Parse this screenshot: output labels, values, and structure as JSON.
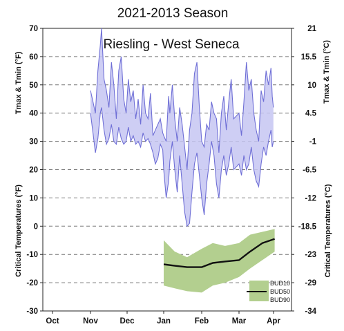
{
  "chart_data": {
    "type": "area",
    "title": "2021-2013 Season",
    "subtitle": "Riesling - West Seneca",
    "x_months": [
      "Oct",
      "Nov",
      "Dec",
      "Jan",
      "Feb",
      "Mar",
      "Apr"
    ],
    "yleft": {
      "range": [
        -30,
        70
      ],
      "ticks": [
        "70",
        "60",
        "50",
        "40",
        "30",
        "20",
        "10",
        "0",
        "-10",
        "-20",
        "-30"
      ],
      "label_top": "Tmax & Tmin (°F)",
      "label_bottom": "Critical Temperatures (°F)"
    },
    "yright": {
      "ticks": [
        "21",
        "15.5",
        "10",
        "4.5",
        "-1",
        "-6.5",
        "-12",
        "-18.5",
        "-23",
        "-29",
        "-34"
      ],
      "label_top": "Tmax & Tmin (°C)",
      "label_bottom": "Critical Temperatures (°C)"
    },
    "gridlines": [
      60,
      50,
      40,
      30,
      20,
      10,
      0,
      -10,
      -20
    ],
    "temperature_series": {
      "name": "Tmax & Tmin",
      "color": "#6f6fd6",
      "fill": "#c6c6f2",
      "days": [
        {
          "date": "Nov 1",
          "tmin": 40,
          "tmax": 48
        },
        {
          "date": "Nov 3",
          "tmin": 33,
          "tmax": 44
        },
        {
          "date": "Nov 5",
          "tmin": 26,
          "tmax": 40
        },
        {
          "date": "Nov 7",
          "tmin": 31,
          "tmax": 55
        },
        {
          "date": "Nov 9",
          "tmin": 40,
          "tmax": 64
        },
        {
          "date": "Nov 10",
          "tmin": 42,
          "tmax": 70
        },
        {
          "date": "Nov 12",
          "tmin": 34,
          "tmax": 52
        },
        {
          "date": "Nov 14",
          "tmin": 29,
          "tmax": 48
        },
        {
          "date": "Nov 16",
          "tmin": 31,
          "tmax": 42
        },
        {
          "date": "Nov 18",
          "tmin": 36,
          "tmax": 58
        },
        {
          "date": "Nov 20",
          "tmin": 30,
          "tmax": 50
        },
        {
          "date": "Nov 22",
          "tmin": 29,
          "tmax": 38
        },
        {
          "date": "Nov 24",
          "tmin": 35,
          "tmax": 55
        },
        {
          "date": "Nov 26",
          "tmin": 31,
          "tmax": 60
        },
        {
          "date": "Nov 28",
          "tmin": 29,
          "tmax": 45
        },
        {
          "date": "Nov 30",
          "tmin": 30,
          "tmax": 40
        },
        {
          "date": "Dec 2",
          "tmin": 35,
          "tmax": 52
        },
        {
          "date": "Dec 4",
          "tmin": 30,
          "tmax": 44
        },
        {
          "date": "Dec 6",
          "tmin": 32,
          "tmax": 48
        },
        {
          "date": "Dec 8",
          "tmin": 29,
          "tmax": 38
        },
        {
          "date": "Dec 10",
          "tmin": 30,
          "tmax": 45
        },
        {
          "date": "Dec 12",
          "tmin": 28,
          "tmax": 36
        },
        {
          "date": "Dec 14",
          "tmin": 33,
          "tmax": 50
        },
        {
          "date": "Dec 16",
          "tmin": 30,
          "tmax": 40
        },
        {
          "date": "Dec 18",
          "tmin": 31,
          "tmax": 38
        },
        {
          "date": "Dec 20",
          "tmin": 29,
          "tmax": 47
        },
        {
          "date": "Dec 22",
          "tmin": 26,
          "tmax": 32
        },
        {
          "date": "Dec 24",
          "tmin": 22,
          "tmax": 34
        },
        {
          "date": "Dec 26",
          "tmin": 24,
          "tmax": 36
        },
        {
          "date": "Dec 28",
          "tmin": 29,
          "tmax": 38
        },
        {
          "date": "Dec 30",
          "tmin": 27,
          "tmax": 33
        },
        {
          "date": "Jan 1",
          "tmin": 20,
          "tmax": 32
        },
        {
          "date": "Jan 3",
          "tmin": 10,
          "tmax": 30
        },
        {
          "date": "Jan 5",
          "tmin": 16,
          "tmax": 46
        },
        {
          "date": "Jan 6",
          "tmin": 23,
          "tmax": 40
        },
        {
          "date": "Jan 8",
          "tmin": 30,
          "tmax": 50
        },
        {
          "date": "Jan 10",
          "tmin": 20,
          "tmax": 38
        },
        {
          "date": "Jan 12",
          "tmin": 12,
          "tmax": 30
        },
        {
          "date": "Jan 14",
          "tmin": 25,
          "tmax": 42
        },
        {
          "date": "Jan 16",
          "tmin": 15,
          "tmax": 36
        },
        {
          "date": "Jan 18",
          "tmin": 5,
          "tmax": 28
        },
        {
          "date": "Jan 20",
          "tmin": 0,
          "tmax": 20
        },
        {
          "date": "Jan 22",
          "tmin": 1,
          "tmax": 34
        },
        {
          "date": "Jan 24",
          "tmin": 12,
          "tmax": 40
        },
        {
          "date": "Jan 26",
          "tmin": 22,
          "tmax": 54
        },
        {
          "date": "Jan 28",
          "tmin": 26,
          "tmax": 58
        },
        {
          "date": "Jan 30",
          "tmin": 18,
          "tmax": 42
        },
        {
          "date": "Feb 1",
          "tmin": 10,
          "tmax": 30
        },
        {
          "date": "Feb 3",
          "tmin": 4,
          "tmax": 28
        },
        {
          "date": "Feb 5",
          "tmin": 15,
          "tmax": 36
        },
        {
          "date": "Feb 7",
          "tmin": 22,
          "tmax": 34
        },
        {
          "date": "Feb 9",
          "tmin": 30,
          "tmax": 44
        },
        {
          "date": "Feb 11",
          "tmin": 25,
          "tmax": 40
        },
        {
          "date": "Feb 13",
          "tmin": 15,
          "tmax": 38
        },
        {
          "date": "Feb 15",
          "tmin": 10,
          "tmax": 26
        },
        {
          "date": "Feb 17",
          "tmin": 20,
          "tmax": 40
        },
        {
          "date": "Feb 19",
          "tmin": 25,
          "tmax": 46
        },
        {
          "date": "Feb 21",
          "tmin": 18,
          "tmax": 34
        },
        {
          "date": "Feb 23",
          "tmin": 22,
          "tmax": 44
        },
        {
          "date": "Feb 25",
          "tmin": 28,
          "tmax": 52
        },
        {
          "date": "Feb 27",
          "tmin": 20,
          "tmax": 38
        },
        {
          "date": "Mar 1",
          "tmin": 22,
          "tmax": 40
        },
        {
          "date": "Mar 3",
          "tmin": 18,
          "tmax": 32
        },
        {
          "date": "Mar 5",
          "tmin": 25,
          "tmax": 44
        },
        {
          "date": "Mar 7",
          "tmin": 20,
          "tmax": 58
        },
        {
          "date": "Mar 9",
          "tmin": 22,
          "tmax": 48
        },
        {
          "date": "Mar 11",
          "tmin": 28,
          "tmax": 52
        },
        {
          "date": "Mar 13",
          "tmin": 20,
          "tmax": 40
        },
        {
          "date": "Mar 15",
          "tmin": 16,
          "tmax": 34
        },
        {
          "date": "Mar 17",
          "tmin": 14,
          "tmax": 30
        },
        {
          "date": "Mar 19",
          "tmin": 22,
          "tmax": 48
        },
        {
          "date": "Mar 21",
          "tmin": 28,
          "tmax": 44
        },
        {
          "date": "Mar 23",
          "tmin": 25,
          "tmax": 55
        },
        {
          "date": "Mar 25",
          "tmin": 30,
          "tmax": 50
        },
        {
          "date": "Mar 27",
          "tmin": 34,
          "tmax": 56
        },
        {
          "date": "Mar 28",
          "tmin": 28,
          "tmax": 46
        },
        {
          "date": "Mar 29",
          "tmin": 30,
          "tmax": 42
        }
      ]
    },
    "critical_series": {
      "legend": [
        "BUD10",
        "BUD50",
        "BUD90"
      ],
      "band_color": "#b3cf8f",
      "line_color": "#111111",
      "points": [
        {
          "date": "Jan 1",
          "bud10": -5,
          "bud50": -13.5,
          "bud90": -21
        },
        {
          "date": "Jan 10",
          "bud10": -9,
          "bud50": -14,
          "bud90": -22
        },
        {
          "date": "Jan 20",
          "bud10": -11,
          "bud50": -14.5,
          "bud90": -23
        },
        {
          "date": "Feb 1",
          "bud10": -8,
          "bud50": -14.5,
          "bud90": -23.5
        },
        {
          "date": "Feb 10",
          "bud10": -6,
          "bud50": -13,
          "bud90": -21
        },
        {
          "date": "Feb 20",
          "bud10": -7,
          "bud50": -12.5,
          "bud90": -20
        },
        {
          "date": "Mar 1",
          "bud10": -6,
          "bud50": -12,
          "bud90": -18
        },
        {
          "date": "Mar 10",
          "bud10": -3,
          "bud50": -9,
          "bud90": -15
        },
        {
          "date": "Mar 20",
          "bud10": -2,
          "bud50": -6,
          "bud90": -12
        },
        {
          "date": "Mar 30",
          "bud10": -1,
          "bud50": -4.5,
          "bud90": -9
        }
      ]
    }
  }
}
